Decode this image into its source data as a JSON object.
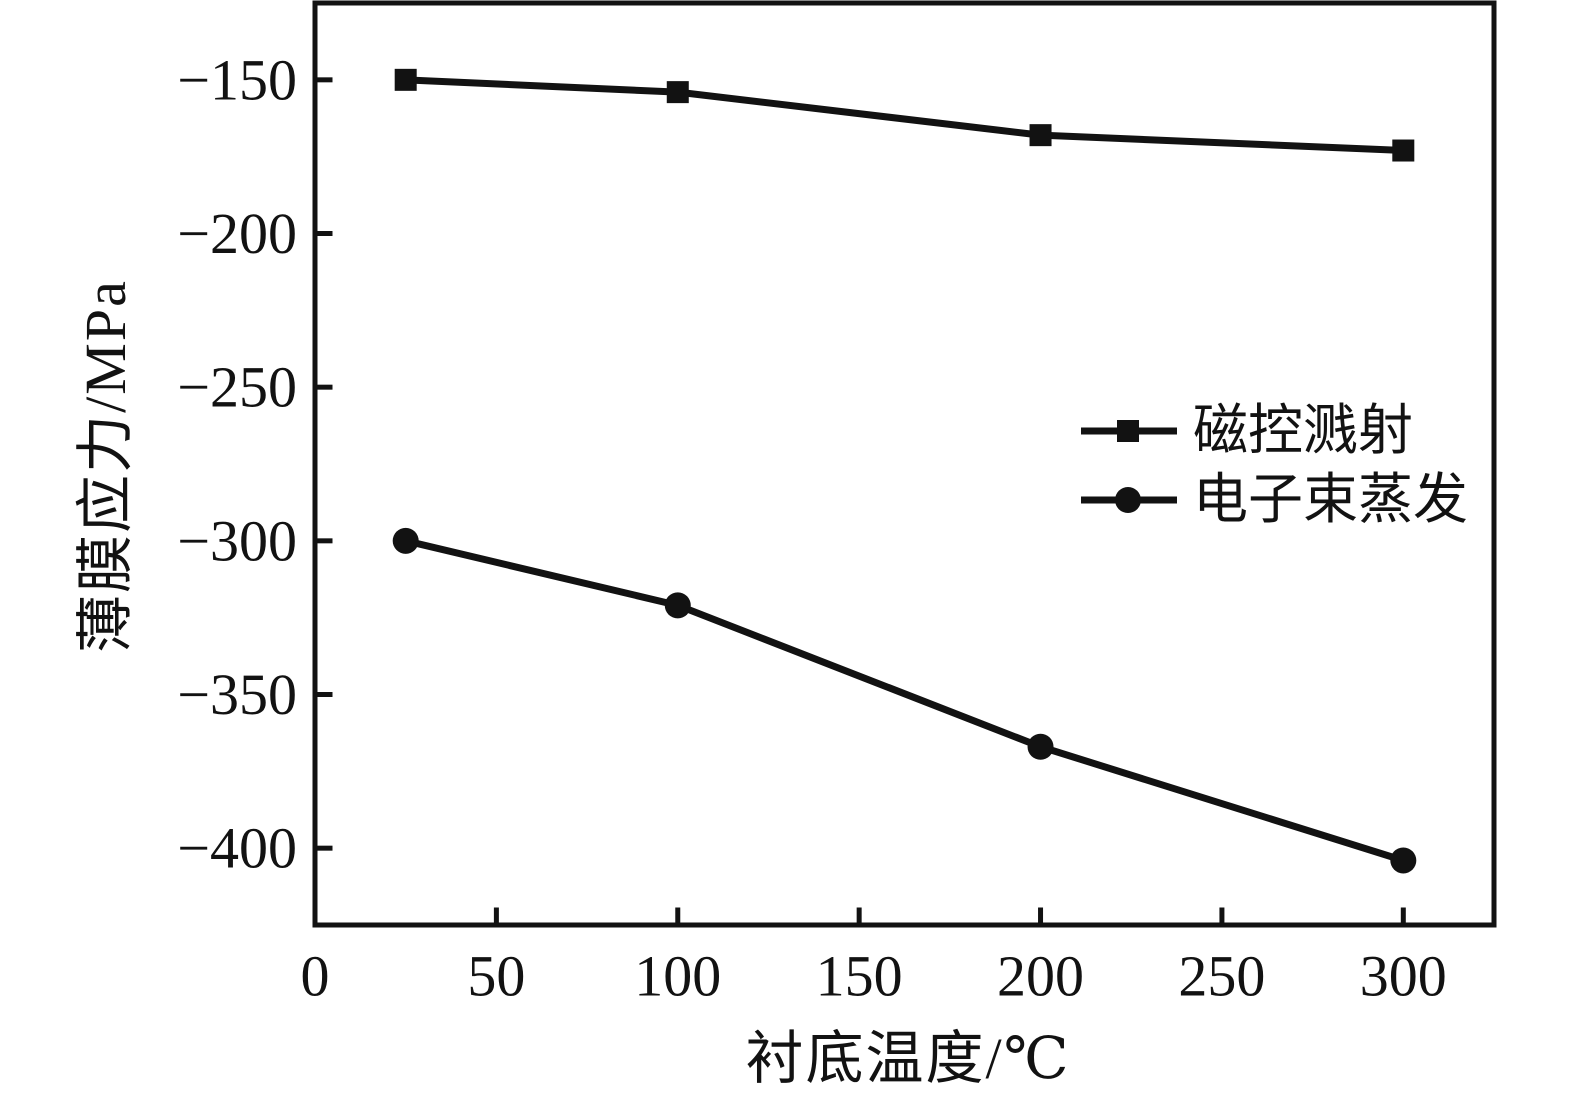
{
  "figure": {
    "background": "#ffffff",
    "ink_color": "#121212"
  },
  "chart_data": {
    "type": "line",
    "title": "",
    "xlabel": "衬底温度/℃",
    "ylabel": "薄膜应力/MPa",
    "xlim": [
      0,
      325
    ],
    "ylim": [
      -425,
      -125
    ],
    "x_ticks": [
      0,
      50,
      100,
      150,
      200,
      250,
      300
    ],
    "y_ticks": [
      -150,
      -200,
      -250,
      -300,
      -350,
      -400
    ],
    "grid": false,
    "legend_position": "center-right-inside",
    "series": [
      {
        "name": "磁控溅射",
        "marker": "square",
        "color": "#121212",
        "x": [
          25,
          100,
          200,
          300
        ],
        "y": [
          -150,
          -154,
          -168,
          -173
        ]
      },
      {
        "name": "电子束蒸发",
        "marker": "circle",
        "color": "#121212",
        "x": [
          25,
          100,
          200,
          300
        ],
        "y": [
          -300,
          -321,
          -367,
          -404
        ]
      }
    ]
  }
}
